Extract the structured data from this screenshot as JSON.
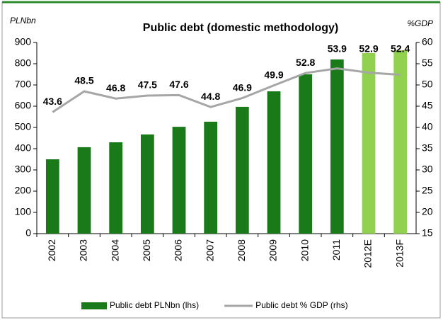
{
  "chart_data": {
    "type": "bar_line",
    "title": "Public debt (domestic methodology)",
    "y_label": "PLNbn",
    "y2_label": "%GDP",
    "categories": [
      "2002",
      "2003",
      "2004",
      "2005",
      "2006",
      "2007",
      "2008",
      "2009",
      "2010",
      "2011",
      "2012E",
      "2013F"
    ],
    "series": [
      {
        "name": "Public debt PLNbn (lhs)",
        "type": "bar",
        "color": "#1a7a1a",
        "colors": [
          "#1a7a1a",
          "#1a7a1a",
          "#1a7a1a",
          "#1a7a1a",
          "#1a7a1a",
          "#1a7a1a",
          "#1a7a1a",
          "#1a7a1a",
          "#1a7a1a",
          "#1a7a1a",
          "#92d050",
          "#92d050"
        ],
        "values": [
          350,
          407,
          430,
          467,
          503,
          527,
          597,
          670,
          750,
          820,
          850,
          863
        ]
      },
      {
        "name": "Public debt % GDP (rhs)",
        "type": "line",
        "axis": "y2",
        "color": "#a6a6a6",
        "values": [
          43.6,
          48.5,
          46.8,
          47.5,
          47.6,
          44.8,
          46.9,
          49.9,
          52.8,
          53.9,
          52.9,
          52.4
        ]
      }
    ],
    "ylim": [
      0,
      900
    ],
    "yticks": [
      0,
      100,
      200,
      300,
      400,
      500,
      600,
      700,
      800,
      900
    ],
    "y2lim": [
      15,
      60
    ],
    "y2ticks": [
      15,
      20,
      25,
      30,
      35,
      40,
      45,
      50,
      55,
      60
    ],
    "legend": "bottom"
  }
}
